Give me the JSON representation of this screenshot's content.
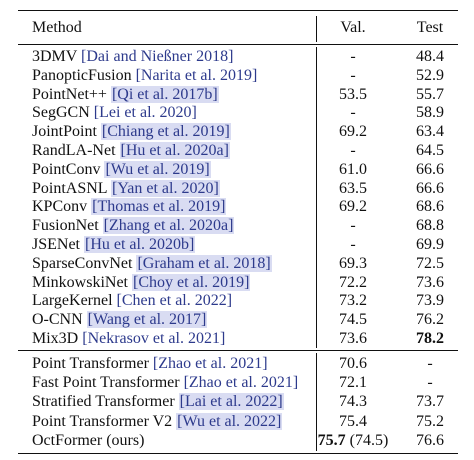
{
  "header": {
    "method": "Method",
    "val": "Val.",
    "test": "Test"
  },
  "group1": [
    {
      "name": "3DMV",
      "cite": "[Dai and Nießner 2018]",
      "hl": false,
      "val": "-",
      "test": "48.4"
    },
    {
      "name": "PanopticFusion",
      "cite": "[Narita et al. 2019]",
      "hl": false,
      "val": "-",
      "test": "52.9"
    },
    {
      "name": "PointNet++",
      "cite": "[Qi et al. 2017b]",
      "hl": true,
      "val": "53.5",
      "test": "55.7"
    },
    {
      "name": "SegGCN",
      "cite": "[Lei et al. 2020]",
      "hl": false,
      "val": "-",
      "test": "58.9"
    },
    {
      "name": "JointPoint",
      "cite": "[Chiang et al. 2019]",
      "hl": true,
      "val": "69.2",
      "test": "63.4"
    },
    {
      "name": "RandLA-Net",
      "cite": "[Hu et al. 2020a]",
      "hl": true,
      "val": "-",
      "test": "64.5"
    },
    {
      "name": "PointConv",
      "cite": "[Wu et al. 2019]",
      "hl": true,
      "val": "61.0",
      "test": "66.6"
    },
    {
      "name": "PointASNL",
      "cite": "[Yan et al. 2020]",
      "hl": true,
      "val": "63.5",
      "test": "66.6"
    },
    {
      "name": "KPConv",
      "cite": "[Thomas et al. 2019]",
      "hl": true,
      "val": "69.2",
      "test": "68.6"
    },
    {
      "name": "FusionNet",
      "cite": "[Zhang et al. 2020a]",
      "hl": true,
      "val": "-",
      "test": "68.8"
    },
    {
      "name": "JSENet",
      "cite": "[Hu et al. 2020b]",
      "hl": true,
      "val": "-",
      "test": "69.9"
    },
    {
      "name": "SparseConvNet",
      "cite": "[Graham et al. 2018]",
      "hl": true,
      "val": "69.3",
      "test": "72.5"
    },
    {
      "name": "MinkowskiNet",
      "cite": "[Choy et al. 2019]",
      "hl": true,
      "val": "72.2",
      "test": "73.6"
    },
    {
      "name": "LargeKernel",
      "cite": "[Chen et al. 2022]",
      "hl": false,
      "val": "73.2",
      "test": "73.9"
    },
    {
      "name": "O-CNN",
      "cite": "[Wang et al. 2017]",
      "hl": true,
      "val": "74.5",
      "test": "76.2"
    },
    {
      "name": "Mix3D",
      "cite": "[Nekrasov et al. 2021]",
      "hl": false,
      "val": "73.6",
      "test": "78.2",
      "test_bold": true
    }
  ],
  "group2": [
    {
      "name": "Point Transformer",
      "cite": "[Zhao et al. 2021]",
      "hl": false,
      "val": "70.6",
      "test": "-"
    },
    {
      "name": "Fast Point Transformer",
      "cite": "[Zhao et al. 2021]",
      "hl": false,
      "val": "72.1",
      "test": "-"
    },
    {
      "name": "Stratified Transformer",
      "cite": "[Lai et al. 2022]",
      "hl": true,
      "val": "74.3",
      "test": "73.7"
    },
    {
      "name": "Point Transformer V2",
      "cite": "[Wu et al. 2022]",
      "hl": true,
      "val": "75.4",
      "test": "75.2"
    },
    {
      "name": "OctFormer (ours)",
      "cite": "",
      "hl": false,
      "val_bold": "75.7",
      "val_rest": " (74.5)",
      "test": "76.6"
    }
  ]
}
